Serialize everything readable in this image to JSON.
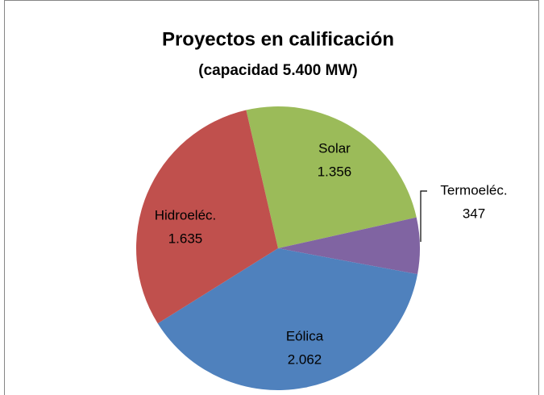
{
  "chart_data": {
    "type": "pie",
    "title": "Proyectos en calificación",
    "subtitle": "(capacidad 5.400 MW)",
    "categories": [
      "Solar",
      "Termoeléc.",
      "Eólica",
      "Hidroeléc."
    ],
    "values": [
      1356,
      347,
      2062,
      1635
    ],
    "value_labels": [
      "1.356",
      "347",
      "2.062",
      "1.635"
    ],
    "colors": [
      "#9bbb59",
      "#8064a2",
      "#4f81bd",
      "#c0504d"
    ]
  }
}
